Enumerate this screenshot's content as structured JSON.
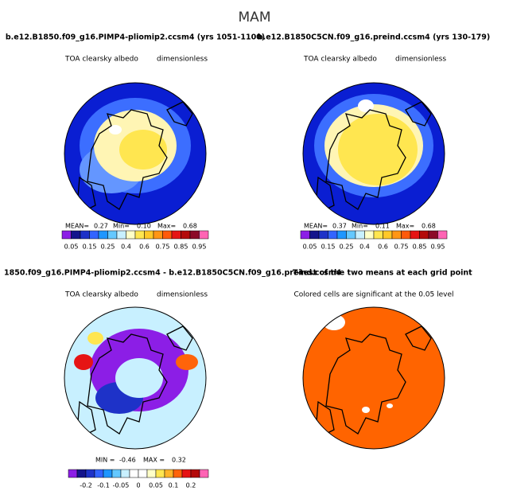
{
  "title": "MAM",
  "panels": [
    {
      "title": "b.e12.B1850.f09_g16.PIMP4-pliomip2.ccsm4 (yrs 1051-1100)",
      "subtitle": "TOA clearsky albedo",
      "units": "dimensionless",
      "stats": [
        "MEAN=",
        "0.27",
        "Min=",
        "0.10",
        "Max=",
        "0.68"
      ],
      "colorbar_labels": [
        "0.05",
        "0.15",
        "0.25",
        "0.4",
        "0.6",
        "0.75",
        "0.85",
        "0.95"
      ]
    },
    {
      "title": "b.e12.B1850C5CN.f09_g16.preind.ccsm4 (yrs 130-179)",
      "subtitle": "TOA clearsky albedo",
      "units": "dimensionless",
      "stats": [
        "MEAN=",
        "0.37",
        "Min=",
        "0.11",
        "Max=",
        "0.68"
      ],
      "colorbar_labels": [
        "0.05",
        "0.15",
        "0.25",
        "0.4",
        "0.6",
        "0.75",
        "0.85",
        "0.95"
      ]
    },
    {
      "title": "1850.f09_g16.PIMP4-pliomip2.ccsm4 - b.e12.B1850C5CN.f09_g16.preind.ccsm4",
      "subtitle": "TOA clearsky albedo",
      "units": "dimensionless",
      "stats": [
        "MIN =",
        "-0.46",
        "MAX =",
        "0.32"
      ],
      "colorbar_labels": [
        "-0.2",
        "-0.1",
        "-0.05",
        "0",
        "0.05",
        "0.1",
        "0.2"
      ]
    },
    {
      "title": "T-test of the two means at each grid point",
      "subtitle": "Colored cells are significant at the 0.05 level"
    }
  ]
}
